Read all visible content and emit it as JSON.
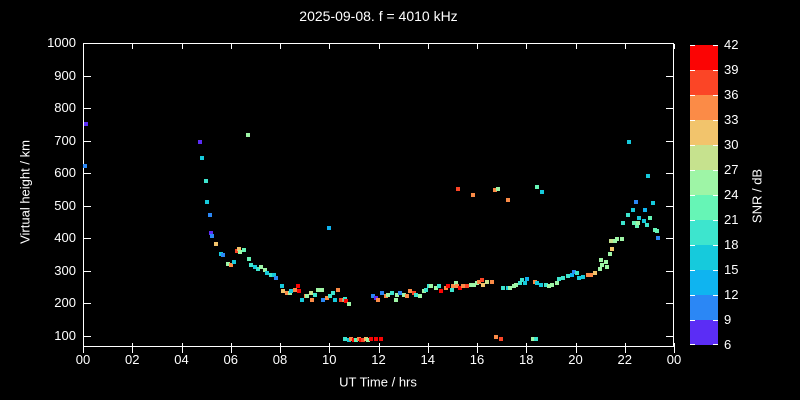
{
  "chart_data": {
    "type": "scatter",
    "title": "2025-09-08. f = 4010 kHz",
    "xlabel": "UT Time / hrs",
    "ylabel": "Virtual height / km",
    "colorbar_label": "SNR / dB",
    "background_color": "#000000",
    "axis_color": "#ffffff",
    "xlim": [
      0,
      24
    ],
    "ylim": [
      66,
      1000
    ],
    "grid": false,
    "x_tick_hours": [
      0,
      2,
      4,
      6,
      8,
      10,
      12,
      14,
      16,
      18,
      20,
      22,
      24
    ],
    "x_tick_labels": [
      "00",
      "02",
      "04",
      "06",
      "08",
      "10",
      "12",
      "14",
      "16",
      "18",
      "20",
      "22",
      "00"
    ],
    "y_tick_values": [
      100,
      200,
      300,
      400,
      500,
      600,
      700,
      800,
      900,
      1000
    ],
    "colorbar_ticks": [
      42,
      39,
      36,
      33,
      30,
      27,
      24,
      21,
      18,
      15,
      12,
      9,
      6
    ],
    "snr_scale": {
      "min": 6,
      "max": 42,
      "step": 3,
      "colors_low_to_high": [
        "#5b2df5",
        "#2b87f5",
        "#0fb4f0",
        "#16cadc",
        "#3de5ce",
        "#66f5b6",
        "#9ef5a6",
        "#c6e28e",
        "#f2c46c",
        "#fb8b47",
        "#fb4526",
        "#fb0404"
      ]
    },
    "points_format": [
      "ut_hours",
      "virtual_height_km",
      "snr_db"
    ],
    "points": [
      [
        0.05,
        625,
        10
      ],
      [
        0.1,
        755,
        7
      ],
      [
        4.7,
        698,
        7
      ],
      [
        4.8,
        650,
        16
      ],
      [
        4.95,
        580,
        19
      ],
      [
        5.0,
        515,
        16
      ],
      [
        5.1,
        475,
        10
      ],
      [
        5.15,
        420,
        7
      ],
      [
        5.2,
        410,
        10
      ],
      [
        5.35,
        385,
        31
      ],
      [
        5.55,
        355,
        16
      ],
      [
        5.65,
        353,
        10
      ],
      [
        5.85,
        325,
        25
      ],
      [
        5.95,
        320,
        34
      ],
      [
        6.1,
        330,
        16
      ],
      [
        6.2,
        365,
        37
      ],
      [
        6.3,
        370,
        31
      ],
      [
        6.35,
        360,
        25
      ],
      [
        6.5,
        368,
        22
      ],
      [
        6.65,
        720,
        25
      ],
      [
        6.7,
        340,
        22
      ],
      [
        6.8,
        322,
        19
      ],
      [
        6.95,
        315,
        16
      ],
      [
        7.05,
        310,
        19
      ],
      [
        7.2,
        315,
        25
      ],
      [
        7.35,
        305,
        25
      ],
      [
        7.45,
        295,
        16
      ],
      [
        7.6,
        290,
        19
      ],
      [
        7.7,
        290,
        16
      ],
      [
        7.8,
        280,
        10
      ],
      [
        8.05,
        255,
        16
      ],
      [
        8.1,
        240,
        31
      ],
      [
        8.25,
        235,
        34
      ],
      [
        8.35,
        235,
        25
      ],
      [
        8.4,
        240,
        16
      ],
      [
        8.55,
        245,
        34
      ],
      [
        8.7,
        255,
        40
      ],
      [
        8.75,
        240,
        40
      ],
      [
        8.85,
        215,
        16
      ],
      [
        9.0,
        225,
        34
      ],
      [
        9.05,
        225,
        25
      ],
      [
        9.2,
        235,
        28
      ],
      [
        9.25,
        215,
        34
      ],
      [
        9.4,
        230,
        19
      ],
      [
        9.5,
        245,
        25
      ],
      [
        9.65,
        245,
        25
      ],
      [
        9.7,
        215,
        10
      ],
      [
        9.85,
        220,
        34
      ],
      [
        9.95,
        435,
        13
      ],
      [
        10.0,
        225,
        19
      ],
      [
        10.1,
        235,
        19
      ],
      [
        10.2,
        215,
        16
      ],
      [
        10.3,
        245,
        34
      ],
      [
        10.45,
        213,
        37
      ],
      [
        10.55,
        214,
        34
      ],
      [
        10.6,
        217,
        19
      ],
      [
        10.65,
        210,
        40
      ],
      [
        10.75,
        200,
        25
      ],
      [
        10.6,
        95,
        19
      ],
      [
        10.75,
        90,
        16
      ],
      [
        10.85,
        95,
        34
      ],
      [
        10.95,
        90,
        40
      ],
      [
        11.05,
        90,
        22
      ],
      [
        11.15,
        95,
        34
      ],
      [
        11.25,
        90,
        40
      ],
      [
        11.35,
        90,
        37
      ],
      [
        11.45,
        95,
        31
      ],
      [
        11.55,
        90,
        25
      ],
      [
        11.65,
        95,
        40
      ],
      [
        11.85,
        95,
        40
      ],
      [
        12.05,
        95,
        40
      ],
      [
        11.75,
        225,
        10
      ],
      [
        11.85,
        220,
        7
      ],
      [
        11.95,
        215,
        34
      ],
      [
        12.1,
        235,
        10
      ],
      [
        12.25,
        225,
        34
      ],
      [
        12.35,
        230,
        25
      ],
      [
        12.5,
        235,
        19
      ],
      [
        12.65,
        215,
        25
      ],
      [
        12.7,
        230,
        25
      ],
      [
        12.85,
        235,
        10
      ],
      [
        13.0,
        230,
        25
      ],
      [
        13.1,
        225,
        34
      ],
      [
        13.25,
        240,
        34
      ],
      [
        13.4,
        235,
        37
      ],
      [
        13.5,
        230,
        19
      ],
      [
        13.65,
        225,
        25
      ],
      [
        13.8,
        240,
        25
      ],
      [
        13.9,
        245,
        19
      ],
      [
        14.0,
        255,
        19
      ],
      [
        14.1,
        255,
        25
      ],
      [
        14.3,
        250,
        25
      ],
      [
        14.4,
        255,
        19
      ],
      [
        14.5,
        240,
        40
      ],
      [
        14.7,
        250,
        34
      ],
      [
        14.8,
        255,
        40
      ],
      [
        14.95,
        245,
        19
      ],
      [
        15.0,
        257,
        34
      ],
      [
        15.1,
        265,
        25
      ],
      [
        15.15,
        255,
        34
      ],
      [
        15.25,
        250,
        40
      ],
      [
        15.4,
        255,
        34
      ],
      [
        15.55,
        255,
        37
      ],
      [
        15.7,
        260,
        25
      ],
      [
        15.85,
        260,
        25
      ],
      [
        15.95,
        265,
        25
      ],
      [
        16.05,
        270,
        34
      ],
      [
        16.15,
        275,
        37
      ],
      [
        16.2,
        260,
        31
      ],
      [
        16.35,
        270,
        28
      ],
      [
        16.55,
        270,
        34
      ],
      [
        17.0,
        250,
        19
      ],
      [
        17.2,
        250,
        16
      ],
      [
        17.3,
        250,
        25
      ],
      [
        17.45,
        255,
        25
      ],
      [
        17.55,
        260,
        25
      ],
      [
        17.7,
        265,
        19
      ],
      [
        17.8,
        275,
        19
      ],
      [
        17.9,
        267,
        16
      ],
      [
        18.0,
        278,
        13
      ],
      [
        18.3,
        270,
        34
      ],
      [
        18.4,
        265,
        16
      ],
      [
        18.55,
        260,
        16
      ],
      [
        18.75,
        260,
        19
      ],
      [
        18.9,
        255,
        25
      ],
      [
        19.0,
        260,
        25
      ],
      [
        19.2,
        265,
        25
      ],
      [
        15.2,
        555,
        37
      ],
      [
        15.8,
        535,
        34
      ],
      [
        16.7,
        550,
        34
      ],
      [
        16.8,
        555,
        25
      ],
      [
        17.2,
        520,
        34
      ],
      [
        18.4,
        560,
        22
      ],
      [
        18.6,
        545,
        16
      ],
      [
        16.75,
        100,
        34
      ],
      [
        16.95,
        95,
        37
      ],
      [
        18.25,
        95,
        25
      ],
      [
        18.35,
        95,
        19
      ],
      [
        19.3,
        278,
        19
      ],
      [
        19.45,
        280,
        19
      ],
      [
        19.65,
        288,
        19
      ],
      [
        19.8,
        291,
        13
      ],
      [
        19.9,
        300,
        10
      ],
      [
        20.0,
        295,
        19
      ],
      [
        20.1,
        282,
        16
      ],
      [
        20.25,
        285,
        16
      ],
      [
        20.45,
        290,
        34
      ],
      [
        20.6,
        290,
        34
      ],
      [
        20.75,
        295,
        31
      ],
      [
        20.95,
        310,
        25
      ],
      [
        21.0,
        335,
        25
      ],
      [
        21.05,
        320,
        25
      ],
      [
        21.2,
        330,
        25
      ],
      [
        21.25,
        315,
        25
      ],
      [
        21.35,
        355,
        25
      ],
      [
        21.4,
        395,
        28
      ],
      [
        21.45,
        370,
        31
      ],
      [
        21.55,
        395,
        25
      ],
      [
        21.65,
        400,
        25
      ],
      [
        21.85,
        400,
        25
      ],
      [
        21.9,
        450,
        19
      ],
      [
        22.1,
        475,
        19
      ],
      [
        22.15,
        700,
        16
      ],
      [
        22.3,
        490,
        16
      ],
      [
        22.35,
        450,
        22
      ],
      [
        22.4,
        515,
        10
      ],
      [
        22.45,
        440,
        22
      ],
      [
        22.5,
        450,
        25
      ],
      [
        22.55,
        465,
        16
      ],
      [
        22.75,
        455,
        16
      ],
      [
        22.8,
        490,
        13
      ],
      [
        22.85,
        445,
        19
      ],
      [
        22.9,
        595,
        16
      ],
      [
        23.0,
        465,
        22
      ],
      [
        23.1,
        510,
        16
      ],
      [
        23.2,
        430,
        22
      ],
      [
        23.25,
        427,
        22
      ],
      [
        23.3,
        405,
        10
      ]
    ]
  }
}
